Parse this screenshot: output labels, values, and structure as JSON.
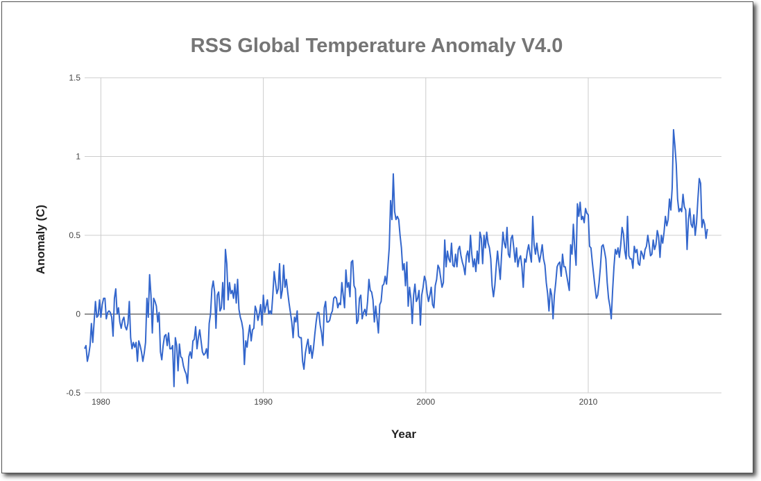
{
  "chart_data": {
    "type": "line",
    "title": "RSS Global Temperature Anomaly V4.0",
    "xlabel": "Year",
    "ylabel": "Anomaly (C)",
    "xlim": [
      1979,
      2018.2
    ],
    "ylim": [
      -0.5,
      1.5
    ],
    "x_ticks": [
      1980,
      1990,
      2000,
      2010
    ],
    "y_ticks": [
      -0.5,
      0,
      0.5,
      1,
      1.5
    ],
    "y_tick_labels": [
      "-0.5",
      "0",
      "0.5",
      "1",
      "1.5"
    ],
    "grid": true,
    "legend": "none",
    "colors": {
      "series": "#3366cc",
      "grid": "#cccccc",
      "zero_line": "#333333"
    },
    "series": [
      {
        "name": "RSS Global Temperature Anomaly",
        "x_start": 1979.0,
        "x_step_years": 0.083333,
        "values": [
          -0.22,
          -0.2,
          -0.3,
          -0.26,
          -0.2,
          -0.06,
          -0.18,
          -0.05,
          0.08,
          -0.02,
          -0.01,
          0.09,
          -0.02,
          0.06,
          0.1,
          0.1,
          -0.03,
          0.01,
          0.02,
          0.01,
          -0.02,
          -0.14,
          0.1,
          0.16,
          0.0,
          0.04,
          -0.05,
          -0.09,
          -0.04,
          -0.02,
          -0.08,
          -0.1,
          -0.06,
          0.08,
          -0.15,
          -0.22,
          -0.18,
          -0.21,
          -0.18,
          -0.3,
          -0.17,
          -0.2,
          -0.24,
          -0.3,
          -0.25,
          -0.18,
          0.1,
          -0.02,
          0.25,
          0.12,
          -0.12,
          0.1,
          0.08,
          0.05,
          -0.05,
          0.01,
          -0.24,
          -0.29,
          -0.2,
          -0.14,
          -0.13,
          -0.2,
          -0.12,
          -0.22,
          -0.22,
          -0.2,
          -0.46,
          -0.15,
          -0.2,
          -0.36,
          -0.19,
          -0.27,
          -0.28,
          -0.33,
          -0.36,
          -0.38,
          -0.44,
          -0.27,
          -0.24,
          -0.28,
          -0.17,
          -0.16,
          -0.08,
          -0.22,
          -0.15,
          -0.1,
          -0.17,
          -0.24,
          -0.26,
          -0.25,
          -0.22,
          -0.28,
          -0.06,
          0.0,
          0.16,
          0.21,
          0.14,
          -0.09,
          0.12,
          0.14,
          0.02,
          0.04,
          0.2,
          0.03,
          0.41,
          0.32,
          0.09,
          0.2,
          0.13,
          0.15,
          0.1,
          0.19,
          0.07,
          0.22,
          0.03,
          -0.02,
          -0.05,
          -0.1,
          -0.32,
          -0.17,
          -0.21,
          -0.13,
          -0.07,
          -0.17,
          -0.1,
          -0.09,
          0.05,
          0.02,
          -0.04,
          0.0,
          0.06,
          -0.07,
          0.12,
          0.01,
          0.05,
          0.09,
          0.0,
          0.02,
          0.0,
          0.12,
          0.27,
          0.2,
          0.13,
          0.16,
          0.32,
          0.1,
          0.15,
          0.31,
          0.17,
          0.22,
          0.14,
          0.07,
          0.01,
          -0.05,
          -0.15,
          -0.02,
          -0.05,
          0.02,
          -0.14,
          -0.15,
          -0.15,
          -0.3,
          -0.35,
          -0.25,
          -0.2,
          -0.16,
          -0.25,
          -0.2,
          -0.28,
          -0.22,
          -0.13,
          -0.05,
          0.01,
          0.01,
          -0.07,
          -0.12,
          -0.2,
          0.04,
          0.08,
          -0.05,
          -0.05,
          -0.04,
          0.0,
          0.02,
          0.1,
          0.11,
          0.1,
          0.04,
          0.07,
          0.06,
          0.2,
          0.12,
          0.04,
          0.28,
          0.17,
          0.2,
          0.11,
          0.33,
          0.34,
          0.18,
          0.16,
          -0.06,
          -0.04,
          0.1,
          0.12,
          -0.03,
          0.01,
          0.03,
          -0.01,
          0.08,
          0.22,
          0.15,
          0.14,
          0.09,
          -0.05,
          0.05,
          -0.03,
          -0.12,
          0.06,
          0.08,
          0.18,
          0.19,
          0.24,
          0.19,
          0.3,
          0.42,
          0.72,
          0.6,
          0.89,
          0.65,
          0.6,
          0.62,
          0.6,
          0.5,
          0.42,
          0.28,
          0.32,
          0.18,
          0.33,
          0.05,
          0.17,
          0.1,
          -0.06,
          0.12,
          0.19,
          0.08,
          0.1,
          0.15,
          -0.07,
          0.12,
          0.17,
          0.24,
          0.21,
          0.13,
          0.08,
          0.12,
          0.17,
          0.06,
          0.04,
          0.18,
          0.22,
          0.31,
          0.29,
          0.23,
          0.17,
          0.2,
          0.47,
          0.3,
          0.4,
          0.35,
          0.33,
          0.45,
          0.31,
          0.3,
          0.38,
          0.3,
          0.41,
          0.43,
          0.37,
          0.33,
          0.3,
          0.25,
          0.37,
          0.4,
          0.33,
          0.5,
          0.38,
          0.3,
          0.35,
          0.27,
          0.4,
          0.32,
          0.52,
          0.48,
          0.32,
          0.5,
          0.42,
          0.52,
          0.45,
          0.42,
          0.35,
          0.18,
          0.11,
          0.18,
          0.3,
          0.4,
          0.31,
          0.22,
          0.38,
          0.52,
          0.45,
          0.42,
          0.55,
          0.38,
          0.36,
          0.48,
          0.5,
          0.42,
          0.33,
          0.42,
          0.3,
          0.35,
          0.37,
          0.3,
          0.17,
          0.35,
          0.33,
          0.4,
          0.44,
          0.38,
          0.33,
          0.62,
          0.44,
          0.38,
          0.45,
          0.38,
          0.33,
          0.38,
          0.44,
          0.35,
          0.31,
          0.2,
          0.13,
          0.02,
          0.16,
          0.12,
          -0.03,
          0.12,
          0.2,
          0.3,
          0.32,
          0.33,
          0.24,
          0.38,
          0.3,
          0.3,
          0.25,
          0.2,
          0.15,
          0.44,
          0.38,
          0.57,
          0.42,
          0.31,
          0.7,
          0.62,
          0.71,
          0.6,
          0.62,
          0.58,
          0.67,
          0.64,
          0.63,
          0.43,
          0.42,
          0.33,
          0.25,
          0.17,
          0.1,
          0.12,
          0.2,
          0.3,
          0.43,
          0.44,
          0.4,
          0.35,
          0.2,
          0.1,
          0.05,
          -0.03,
          0.15,
          0.3,
          0.41,
          0.38,
          0.42,
          0.36,
          0.44,
          0.55,
          0.51,
          0.4,
          0.35,
          0.62,
          0.37,
          0.35,
          0.35,
          0.29,
          0.43,
          0.39,
          0.41,
          0.32,
          0.31,
          0.4,
          0.38,
          0.35,
          0.41,
          0.43,
          0.5,
          0.44,
          0.37,
          0.38,
          0.47,
          0.41,
          0.44,
          0.53,
          0.49,
          0.36,
          0.5,
          0.45,
          0.52,
          0.62,
          0.56,
          0.6,
          0.73,
          0.66,
          0.8,
          1.17,
          1.07,
          0.95,
          0.73,
          0.65,
          0.67,
          0.65,
          0.76,
          0.68,
          0.66,
          0.41,
          0.6,
          0.67,
          0.57,
          0.55,
          0.63,
          0.5,
          0.58,
          0.73,
          0.86,
          0.83,
          0.55,
          0.6,
          0.57,
          0.48,
          0.54
        ]
      }
    ]
  }
}
